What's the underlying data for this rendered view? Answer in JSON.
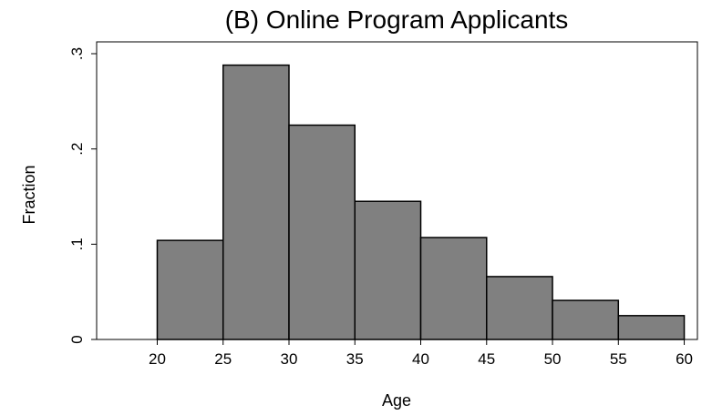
{
  "chart_data": {
    "type": "bar",
    "title": "(B) Online Program Applicants",
    "xlabel": "Age",
    "ylabel": "Fraction",
    "bins": [
      {
        "from": 20,
        "to": 25,
        "value": 0.104
      },
      {
        "from": 25,
        "to": 30,
        "value": 0.288
      },
      {
        "from": 30,
        "to": 35,
        "value": 0.225
      },
      {
        "from": 35,
        "to": 40,
        "value": 0.145
      },
      {
        "from": 40,
        "to": 45,
        "value": 0.107
      },
      {
        "from": 45,
        "to": 50,
        "value": 0.066
      },
      {
        "from": 50,
        "to": 55,
        "value": 0.041
      },
      {
        "from": 55,
        "to": 60,
        "value": 0.025
      }
    ],
    "x_ticks": [
      {
        "value": 20,
        "label": "20"
      },
      {
        "value": 25,
        "label": "25"
      },
      {
        "value": 30,
        "label": "30"
      },
      {
        "value": 35,
        "label": "35"
      },
      {
        "value": 40,
        "label": "40"
      },
      {
        "value": 45,
        "label": "45"
      },
      {
        "value": 50,
        "label": "50"
      },
      {
        "value": 55,
        "label": "55"
      },
      {
        "value": 60,
        "label": "60"
      }
    ],
    "y_ticks": [
      {
        "value": 0,
        "label": "0"
      },
      {
        "value": 0.1,
        "label": ".1"
      },
      {
        "value": 0.2,
        "label": ".2"
      },
      {
        "value": 0.3,
        "label": ".3"
      }
    ],
    "xlim": [
      15.4,
      61
    ],
    "ylim": [
      0,
      0.3
    ],
    "grid": false,
    "colors": {
      "bar_fill": "#808080",
      "bar_stroke": "#000000"
    }
  }
}
